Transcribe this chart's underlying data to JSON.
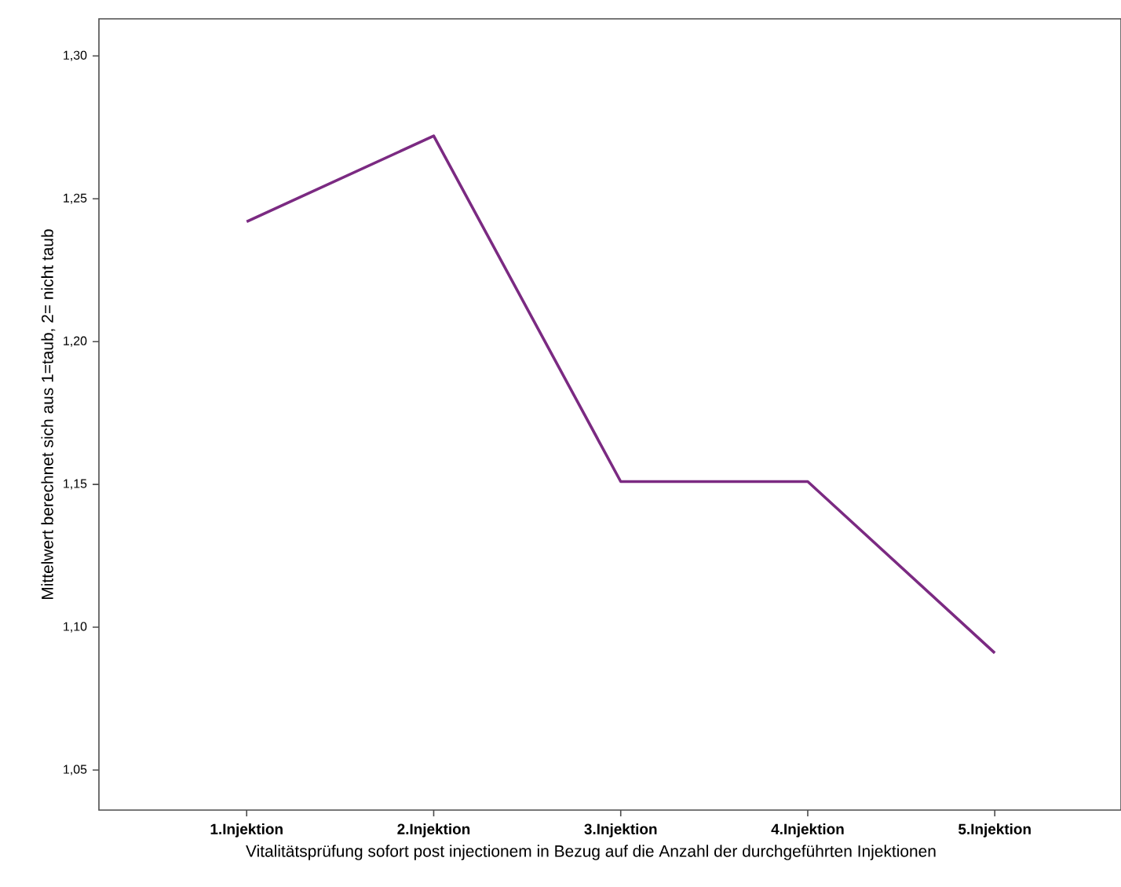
{
  "chart_data": {
    "type": "line",
    "categories": [
      "1.Injektion",
      "2.Injektion",
      "3.Injektion",
      "4.Injektion",
      "5.Injektion"
    ],
    "values": [
      1.242,
      1.272,
      1.151,
      1.151,
      1.091
    ],
    "color": "#7b2a82",
    "xlabel": "Vitalitätsprüfung sofort post injectionem in Bezug auf die Anzahl der durchgeführten Injektionen",
    "ylabel": "Mittelwert berechnet sich aus 1=taub, 2= nicht taub",
    "ylim": [
      1.036,
      1.313
    ],
    "yticks": [
      {
        "value": 1.05,
        "label": "1,05"
      },
      {
        "value": 1.1,
        "label": "1,10"
      },
      {
        "value": 1.15,
        "label": "1,15"
      },
      {
        "value": 1.2,
        "label": "1,20"
      },
      {
        "value": 1.25,
        "label": "1,25"
      },
      {
        "value": 1.3,
        "label": "1,30"
      }
    ],
    "grid": false,
    "marker": "none",
    "line_style": "solid"
  }
}
